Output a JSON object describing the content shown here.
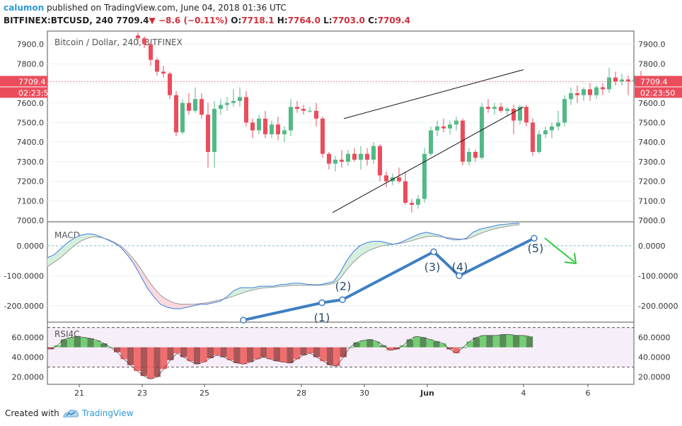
{
  "header": {
    "author": "calumon",
    "published_text": "published on TradingView.com, June 04, 2018 01:36 UTC",
    "symbol": "BITFINEX:BTCUSD, 240",
    "last_price": "7709.4",
    "change_arrow": "▼",
    "change": "−8.6 (−0.11%)",
    "o_label": "O:",
    "o_value": "7718.1",
    "h_label": "H:",
    "h_value": "7764.0",
    "l_label": "L:",
    "l_value": "7703.0",
    "c_label": "C:",
    "c_value": "7709.4"
  },
  "chart_data": [
    {
      "type": "candlestick",
      "title": "Bitcoin / Dollar, 240, BITFINEX",
      "y_ticks": [
        "7000.0",
        "7100.0",
        "7200.0",
        "7300.0",
        "7400.0",
        "7500.0",
        "7600.0",
        "7700.0",
        "7800.0",
        "7900.0"
      ],
      "ylim": [
        7000,
        7960
      ],
      "price_tag": "7709.4",
      "time_tag": "02:23:50",
      "up_color": "#53b987",
      "down_color": "#eb4d5c",
      "candles": [
        {
          "o": 7945,
          "h": 7960,
          "l": 7900,
          "c": 7930
        },
        {
          "o": 7930,
          "h": 7940,
          "l": 7880,
          "c": 7900
        },
        {
          "o": 7900,
          "h": 7910,
          "l": 7790,
          "c": 7820
        },
        {
          "o": 7820,
          "h": 7830,
          "l": 7740,
          "c": 7760
        },
        {
          "o": 7760,
          "h": 7790,
          "l": 7730,
          "c": 7750
        },
        {
          "o": 7750,
          "h": 7760,
          "l": 7620,
          "c": 7640
        },
        {
          "o": 7640,
          "h": 7660,
          "l": 7430,
          "c": 7450
        },
        {
          "o": 7450,
          "h": 7620,
          "l": 7440,
          "c": 7600
        },
        {
          "o": 7600,
          "h": 7650,
          "l": 7540,
          "c": 7560
        },
        {
          "o": 7560,
          "h": 7680,
          "l": 7550,
          "c": 7620
        },
        {
          "o": 7620,
          "h": 7650,
          "l": 7520,
          "c": 7540
        },
        {
          "o": 7540,
          "h": 7600,
          "l": 7270,
          "c": 7350
        },
        {
          "o": 7350,
          "h": 7610,
          "l": 7270,
          "c": 7570
        },
        {
          "o": 7570,
          "h": 7620,
          "l": 7540,
          "c": 7590
        },
        {
          "o": 7590,
          "h": 7630,
          "l": 7560,
          "c": 7600
        },
        {
          "o": 7600,
          "h": 7670,
          "l": 7580,
          "c": 7610
        },
        {
          "o": 7610,
          "h": 7680,
          "l": 7580,
          "c": 7630
        },
        {
          "o": 7630,
          "h": 7660,
          "l": 7480,
          "c": 7500
        },
        {
          "o": 7500,
          "h": 7520,
          "l": 7420,
          "c": 7460
        },
        {
          "o": 7460,
          "h": 7540,
          "l": 7440,
          "c": 7520
        },
        {
          "o": 7520,
          "h": 7560,
          "l": 7420,
          "c": 7440
        },
        {
          "o": 7440,
          "h": 7510,
          "l": 7420,
          "c": 7490
        },
        {
          "o": 7490,
          "h": 7530,
          "l": 7410,
          "c": 7440
        },
        {
          "o": 7440,
          "h": 7480,
          "l": 7400,
          "c": 7460
        },
        {
          "o": 7460,
          "h": 7620,
          "l": 7430,
          "c": 7580
        },
        {
          "o": 7580,
          "h": 7610,
          "l": 7550,
          "c": 7570
        },
        {
          "o": 7570,
          "h": 7590,
          "l": 7540,
          "c": 7560
        },
        {
          "o": 7560,
          "h": 7580,
          "l": 7550,
          "c": 7560
        },
        {
          "o": 7560,
          "h": 7600,
          "l": 7480,
          "c": 7520
        },
        {
          "o": 7520,
          "h": 7530,
          "l": 7320,
          "c": 7340
        },
        {
          "o": 7340,
          "h": 7350,
          "l": 7260,
          "c": 7290
        },
        {
          "o": 7290,
          "h": 7330,
          "l": 7250,
          "c": 7310
        },
        {
          "o": 7310,
          "h": 7360,
          "l": 7270,
          "c": 7300
        },
        {
          "o": 7300,
          "h": 7360,
          "l": 7280,
          "c": 7340
        },
        {
          "o": 7340,
          "h": 7370,
          "l": 7300,
          "c": 7310
        },
        {
          "o": 7310,
          "h": 7380,
          "l": 7260,
          "c": 7340
        },
        {
          "o": 7340,
          "h": 7370,
          "l": 7280,
          "c": 7310
        },
        {
          "o": 7310,
          "h": 7400,
          "l": 7290,
          "c": 7380
        },
        {
          "o": 7380,
          "h": 7390,
          "l": 7200,
          "c": 7230
        },
        {
          "o": 7230,
          "h": 7250,
          "l": 7170,
          "c": 7200
        },
        {
          "o": 7200,
          "h": 7240,
          "l": 7180,
          "c": 7220
        },
        {
          "o": 7220,
          "h": 7270,
          "l": 7190,
          "c": 7200
        },
        {
          "o": 7200,
          "h": 7250,
          "l": 7080,
          "c": 7090
        },
        {
          "o": 7090,
          "h": 7110,
          "l": 7040,
          "c": 7080
        },
        {
          "o": 7080,
          "h": 7130,
          "l": 7060,
          "c": 7110
        },
        {
          "o": 7110,
          "h": 7370,
          "l": 7090,
          "c": 7340
        },
        {
          "o": 7340,
          "h": 7480,
          "l": 7330,
          "c": 7460
        },
        {
          "o": 7460,
          "h": 7510,
          "l": 7430,
          "c": 7480
        },
        {
          "o": 7480,
          "h": 7520,
          "l": 7450,
          "c": 7470
        },
        {
          "o": 7470,
          "h": 7510,
          "l": 7440,
          "c": 7490
        },
        {
          "o": 7490,
          "h": 7530,
          "l": 7460,
          "c": 7510
        },
        {
          "o": 7510,
          "h": 7520,
          "l": 7280,
          "c": 7300
        },
        {
          "o": 7300,
          "h": 7370,
          "l": 7280,
          "c": 7350
        },
        {
          "o": 7350,
          "h": 7360,
          "l": 7300,
          "c": 7320
        },
        {
          "o": 7320,
          "h": 7600,
          "l": 7310,
          "c": 7580
        },
        {
          "o": 7580,
          "h": 7620,
          "l": 7550,
          "c": 7570
        },
        {
          "o": 7570,
          "h": 7600,
          "l": 7540,
          "c": 7580
        },
        {
          "o": 7580,
          "h": 7600,
          "l": 7550,
          "c": 7560
        },
        {
          "o": 7560,
          "h": 7580,
          "l": 7530,
          "c": 7570
        },
        {
          "o": 7570,
          "h": 7590,
          "l": 7440,
          "c": 7510
        },
        {
          "o": 7510,
          "h": 7590,
          "l": 7490,
          "c": 7580
        },
        {
          "o": 7580,
          "h": 7590,
          "l": 7480,
          "c": 7500
        },
        {
          "o": 7500,
          "h": 7520,
          "l": 7330,
          "c": 7350
        },
        {
          "o": 7350,
          "h": 7460,
          "l": 7340,
          "c": 7440
        },
        {
          "o": 7440,
          "h": 7480,
          "l": 7420,
          "c": 7460
        },
        {
          "o": 7460,
          "h": 7500,
          "l": 7420,
          "c": 7480
        },
        {
          "o": 7480,
          "h": 7560,
          "l": 7460,
          "c": 7500
        },
        {
          "o": 7500,
          "h": 7640,
          "l": 7480,
          "c": 7620
        },
        {
          "o": 7620,
          "h": 7680,
          "l": 7590,
          "c": 7650
        },
        {
          "o": 7650,
          "h": 7690,
          "l": 7600,
          "c": 7640
        },
        {
          "o": 7640,
          "h": 7680,
          "l": 7610,
          "c": 7670
        },
        {
          "o": 7670,
          "h": 7700,
          "l": 7610,
          "c": 7640
        },
        {
          "o": 7640,
          "h": 7690,
          "l": 7620,
          "c": 7680
        },
        {
          "o": 7680,
          "h": 7700,
          "l": 7640,
          "c": 7670
        },
        {
          "o": 7670,
          "h": 7780,
          "l": 7650,
          "c": 7730
        },
        {
          "o": 7730,
          "h": 7760,
          "l": 7690,
          "c": 7710
        },
        {
          "o": 7710,
          "h": 7750,
          "l": 7690,
          "c": 7720
        },
        {
          "o": 7720,
          "h": 7740,
          "l": 7640,
          "c": 7710
        },
        {
          "o": 7710,
          "h": 7740,
          "l": 7700,
          "c": 7720
        },
        {
          "o": 7718.1,
          "h": 7764.0,
          "l": 7703.0,
          "c": 7709.4
        }
      ],
      "wedge_upper": [
        [
          7520,
          7770
        ]
      ],
      "wedge_lower": [
        [
          7040,
          7580
        ]
      ]
    },
    {
      "type": "line",
      "title": "MACD",
      "y_ticks": [
        "0.0000",
        "-100.0000",
        "-200.0000"
      ],
      "ylim": [
        -250,
        75
      ],
      "macd": [
        -40,
        -30,
        -10,
        10,
        25,
        35,
        40,
        38,
        30,
        20,
        10,
        -5,
        -30,
        -60,
        -100,
        -140,
        -170,
        -195,
        -205,
        -210,
        -210,
        -205,
        -200,
        -195,
        -195,
        -190,
        -185,
        -170,
        -150,
        -140,
        -140,
        -140,
        -135,
        -135,
        -135,
        -130,
        -128,
        -125,
        -125,
        -128,
        -130,
        -130,
        -125,
        -120,
        -90,
        -50,
        -20,
        0,
        10,
        15,
        15,
        10,
        5,
        10,
        20,
        30,
        40,
        45,
        40,
        35,
        25,
        20,
        20,
        25,
        45,
        55,
        60,
        65,
        70,
        72,
        74,
        75
      ],
      "signal": [
        -70,
        -55,
        -40,
        -20,
        0,
        15,
        25,
        30,
        28,
        22,
        12,
        0,
        -20,
        -45,
        -75,
        -110,
        -140,
        -165,
        -180,
        -190,
        -195,
        -195,
        -195,
        -193,
        -190,
        -185,
        -180,
        -175,
        -168,
        -160,
        -152,
        -147,
        -142,
        -140,
        -138,
        -136,
        -134,
        -132,
        -132,
        -132,
        -132,
        -132,
        -130,
        -126,
        -110,
        -80,
        -55,
        -35,
        -20,
        -10,
        -2,
        2,
        5,
        8,
        12,
        18,
        25,
        30,
        32,
        30,
        28,
        25,
        22,
        22,
        30,
        40,
        48,
        55,
        60,
        64,
        68,
        70
      ],
      "wave_labels": [
        "(1)",
        "(2)",
        "(3)",
        "(4)",
        "(5)"
      ],
      "wave_values": [
        -248,
        -180,
        -20,
        -100,
        25
      ],
      "arrow": "down"
    },
    {
      "type": "area",
      "title": "RSI4C",
      "y_ticks": [
        "60.0000",
        "40.0000",
        "20.0000"
      ],
      "ylim": [
        14,
        74
      ],
      "upper_band": 70,
      "lower_band": 30,
      "values": [
        48,
        52,
        58,
        60,
        61,
        60,
        59,
        57,
        54,
        50,
        45,
        38,
        32,
        26,
        21,
        18,
        20,
        28,
        37,
        44,
        40,
        36,
        33,
        35,
        39,
        42,
        40,
        37,
        34,
        33,
        35,
        38,
        40,
        38,
        36,
        35,
        34,
        38,
        42,
        44,
        40,
        36,
        32,
        31,
        40,
        50,
        55,
        57,
        58,
        56,
        52,
        47,
        48,
        52,
        58,
        61,
        60,
        58,
        56,
        54,
        48,
        44,
        50,
        56,
        60,
        62,
        62,
        62,
        63,
        63,
        62,
        62,
        61
      ],
      "x_ticks": [
        "21",
        "23",
        "25",
        "28",
        "30",
        "Jun",
        "4",
        "6"
      ]
    }
  ],
  "footer": {
    "created_with": "Created with",
    "brand": "TradingView"
  }
}
